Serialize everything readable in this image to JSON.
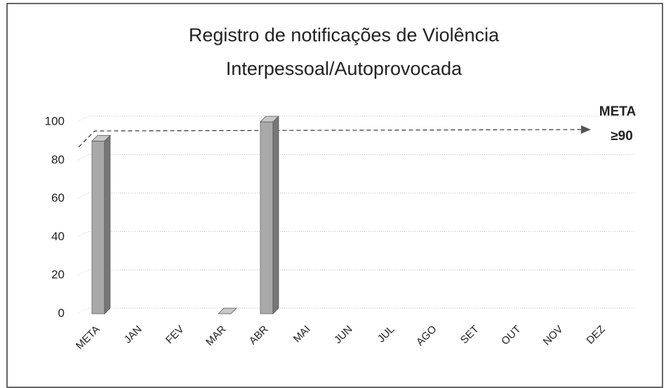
{
  "chart_data": {
    "type": "bar",
    "title": [
      "Registro de notificações de Violência",
      "Interpessoal/Autoprovocada"
    ],
    "categories": [
      "META",
      "JAN",
      "FEV",
      "MAR",
      "ABR",
      "MAI",
      "JUN",
      "JUL",
      "AGO",
      "SET",
      "OUT",
      "NOV",
      "DEZ"
    ],
    "values": [
      90,
      null,
      null,
      0,
      100,
      null,
      null,
      null,
      null,
      null,
      null,
      null,
      null
    ],
    "color": "#a9a9a9",
    "ylim": [
      0,
      100
    ],
    "yticks": [
      0,
      20,
      40,
      60,
      80,
      100
    ],
    "grid": true,
    "annotation": [
      "META",
      "≥90"
    ]
  }
}
